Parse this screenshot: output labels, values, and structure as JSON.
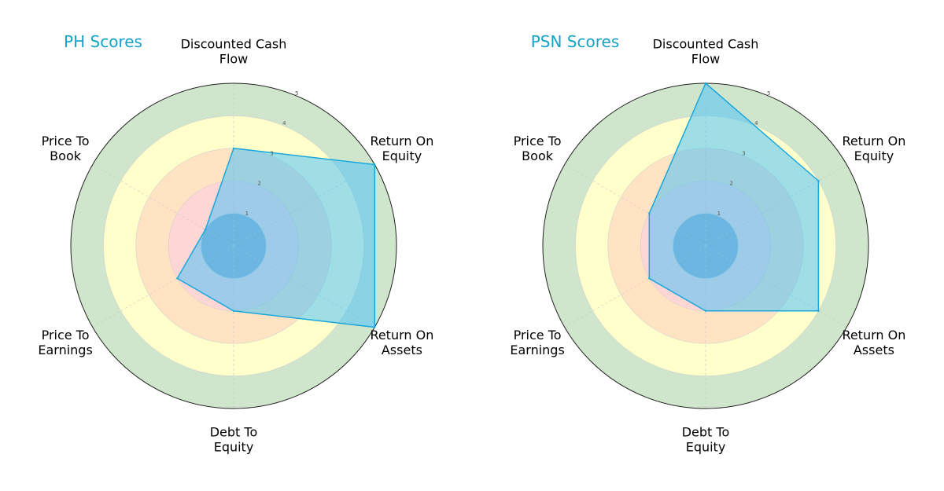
{
  "chart_data": [
    {
      "type": "radar",
      "title": "PH Scores",
      "axes": [
        [
          "Discounted Cash",
          "Flow"
        ],
        [
          "Return On",
          "Equity"
        ],
        [
          "Return On",
          "Assets"
        ],
        [
          "Debt To",
          "Equity"
        ],
        [
          "Price To",
          "Earnings"
        ],
        [
          "Price To",
          "Book"
        ]
      ],
      "values": [
        3,
        5,
        5,
        2,
        2,
        1
      ],
      "rlim": [
        0,
        5
      ],
      "rticks": [
        1,
        2,
        3,
        4,
        5
      ],
      "grid": true,
      "legend": "none"
    },
    {
      "type": "radar",
      "title": "PSN Scores",
      "axes": [
        [
          "Discounted Cash",
          "Flow"
        ],
        [
          "Return On",
          "Equity"
        ],
        [
          "Return On",
          "Assets"
        ],
        [
          "Debt To",
          "Equity"
        ],
        [
          "Price To",
          "Earnings"
        ],
        [
          "Price To",
          "Book"
        ]
      ],
      "values": [
        5,
        4,
        4,
        2,
        2,
        2
      ],
      "rlim": [
        0,
        5
      ],
      "rticks": [
        1,
        2,
        3,
        4,
        5
      ],
      "grid": true,
      "legend": "none"
    }
  ],
  "colors": {
    "title": "#17a2c8",
    "band_1": "#8fa8c8",
    "band_2": "#ffd6d6",
    "band_3": "#ffe3c2",
    "band_4": "#ffffcc",
    "band_5": "#d0e6cc",
    "polygon_fill": "#4fc3f7",
    "polygon_stroke": "#1aa7dd"
  }
}
